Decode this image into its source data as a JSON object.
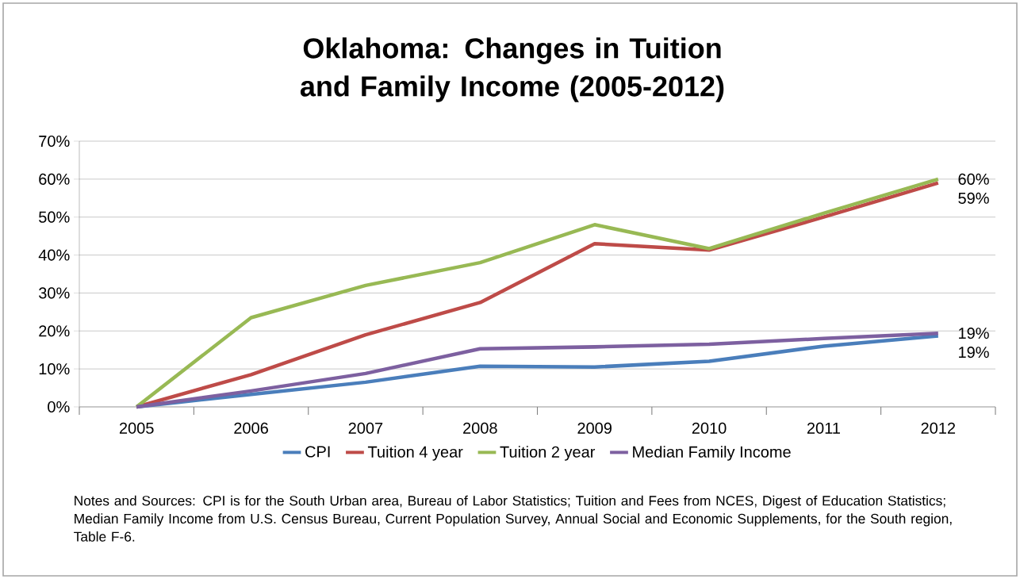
{
  "chart_data": {
    "type": "line",
    "title": "Oklahoma: Changes in Tuition and Family Income (2005-2012)",
    "categories": [
      "2005",
      "2006",
      "2007",
      "2008",
      "2009",
      "2010",
      "2011",
      "2012"
    ],
    "series": [
      {
        "name": "CPI",
        "color": "#4a7ebb",
        "values": [
          0,
          3.3,
          6.5,
          10.7,
          10.5,
          12,
          16,
          18.7
        ],
        "value_labels": [
          null,
          null,
          null,
          null,
          null,
          null,
          null,
          "19%"
        ]
      },
      {
        "name": "Tuition 4 year",
        "color": "#be4b48",
        "values": [
          0,
          8.5,
          19,
          27.5,
          43,
          41.3,
          50,
          59
        ],
        "value_labels": [
          null,
          null,
          null,
          null,
          null,
          null,
          null,
          "59%"
        ]
      },
      {
        "name": "Tuition 2 year",
        "color": "#98b954",
        "values": [
          0,
          23.5,
          32,
          38,
          48,
          41.7,
          51,
          60
        ],
        "value_labels": [
          null,
          null,
          null,
          null,
          null,
          null,
          null,
          "60%"
        ]
      },
      {
        "name": "Median Family Income",
        "color": "#7d60a0",
        "values": [
          0,
          4.2,
          8.8,
          15.3,
          15.8,
          16.5,
          18,
          19.4
        ],
        "value_labels": [
          null,
          null,
          null,
          null,
          null,
          null,
          null,
          "19%"
        ]
      }
    ],
    "ylim": [
      0,
      70
    ],
    "yticks": [
      {
        "value": 0,
        "label": "0%"
      },
      {
        "value": 10,
        "label": "10%"
      },
      {
        "value": 20,
        "label": "20%"
      },
      {
        "value": 30,
        "label": "30%"
      },
      {
        "value": 40,
        "label": "40%"
      },
      {
        "value": 50,
        "label": "50%"
      },
      {
        "value": 60,
        "label": "60%"
      },
      {
        "value": 70,
        "label": "70%"
      }
    ],
    "grid": "y",
    "legend": "bottom",
    "marker": "none",
    "line_style": "solid",
    "annotations": [
      "Notes and Sources: CPI is for the South Urban area, Bureau of Labor Statistics; Tuition and Fees  from NCES, Digest of Education Statistics; Median Family Income from U.S. Census Bureau, Current Population Survey, Annual Social and Economic Supplements, for the South region, Table F-6."
    ]
  }
}
